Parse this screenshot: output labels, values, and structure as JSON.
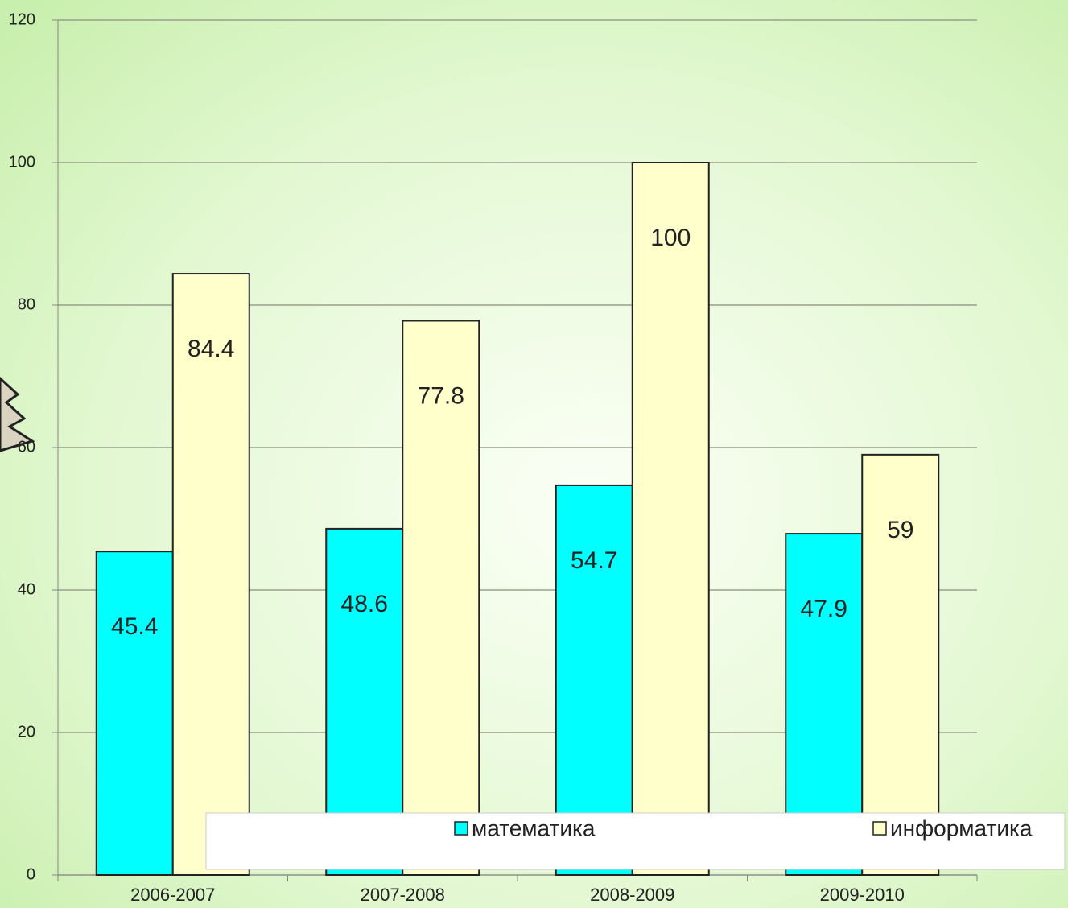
{
  "chart_data": {
    "type": "bar",
    "categories": [
      "2006-2007",
      "2007-2008",
      "2008-2009",
      "2009-2010"
    ],
    "series": [
      {
        "name": "математика",
        "color": "#00ffff",
        "values": [
          45.4,
          48.6,
          54.7,
          47.9
        ]
      },
      {
        "name": "информатика",
        "color": "#ffffcc",
        "values": [
          84.4,
          77.8,
          100,
          59
        ]
      }
    ],
    "ylim": [
      0,
      120
    ],
    "yticks": [
      0,
      20,
      40,
      60,
      80,
      100,
      120
    ],
    "grid": true,
    "legend": "bottom"
  }
}
